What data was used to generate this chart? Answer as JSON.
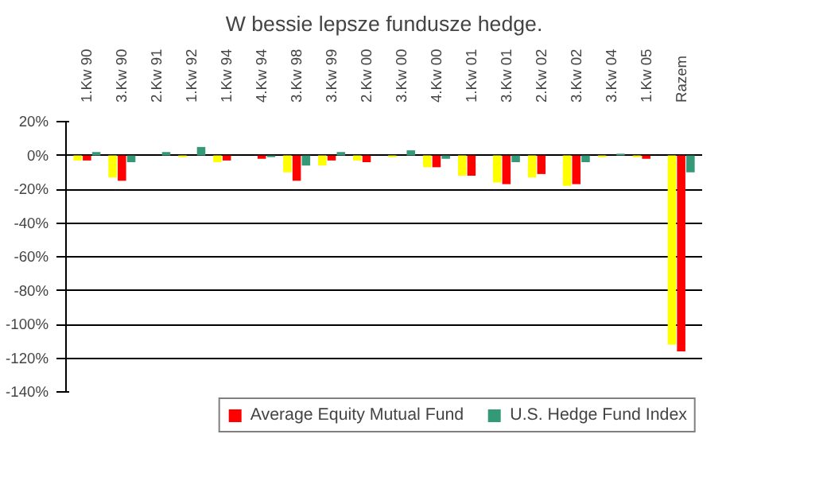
{
  "chart_data": {
    "type": "bar",
    "title": "W bessie lepsze fundusze hedge.",
    "categories": [
      "1.Kw 90",
      "3.Kw 90",
      "2.Kw 91",
      "1.Kw 92",
      "1.Kw 94",
      "4.Kw 94",
      "3.Kw 98",
      "3.Kw 99",
      "2.Kw 00",
      "3.Kw 00",
      "4.Kw 00",
      "1.Kw 01",
      "3.Kw 01",
      "2.Kw 02",
      "3.Kw 02",
      "3.Kw 04",
      "1.Kw 05",
      "Razem"
    ],
    "series": [
      {
        "color": "#ffff00",
        "values": [
          -3,
          -13,
          null,
          -1,
          -4,
          null,
          -10,
          -6,
          -3,
          -1,
          -7,
          -12,
          -16,
          -13,
          -18,
          -1,
          -1,
          -112
        ]
      },
      {
        "name": "Average Equity Mutual Fund",
        "color": "#ff0000",
        "values": [
          -3,
          -15,
          null,
          null,
          -3,
          -2,
          -15,
          -3,
          -4,
          null,
          -7,
          -12,
          -17,
          -11,
          -17,
          null,
          -2,
          -116
        ]
      },
      {
        "name": "U.S. Hedge Fund Index",
        "color": "#339977",
        "values": [
          2,
          -4,
          2,
          5,
          null,
          -1,
          -6,
          2,
          null,
          3,
          -2,
          null,
          -4,
          null,
          -4,
          1,
          null,
          -10
        ]
      }
    ],
    "ylim": [
      -140,
      20
    ],
    "yticks": [
      {
        "value": -140,
        "label": "-140%"
      },
      {
        "value": -120,
        "label": "-120%"
      },
      {
        "value": -100,
        "label": "-100%"
      },
      {
        "value": -80,
        "label": "-80%"
      },
      {
        "value": -60,
        "label": "-60%"
      },
      {
        "value": -40,
        "label": "-40%"
      },
      {
        "value": -20,
        "label": "-20%"
      },
      {
        "value": 0,
        "label": "0%"
      },
      {
        "value": 20,
        "label": "20%"
      }
    ],
    "grid": "y",
    "legend": "bottom"
  }
}
